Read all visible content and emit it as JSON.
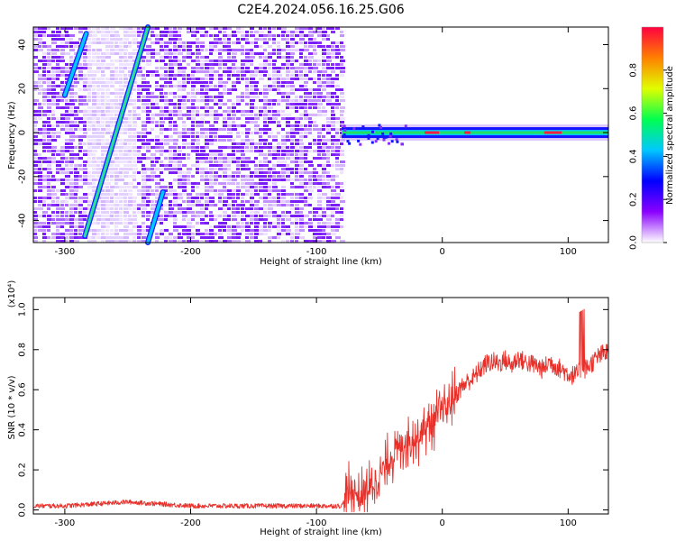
{
  "figure": {
    "title": "C2E4.2024.056.16.25.G06"
  },
  "chart_data": [
    {
      "type": "heatmap",
      "xlabel": "Height of straight line (km)",
      "ylabel": "Frequency (Hz)",
      "xlim": [
        -325,
        132
      ],
      "ylim": [
        -50,
        48
      ],
      "xticks": [
        -300,
        -200,
        -100,
        0,
        100
      ],
      "yticks": [
        -40,
        -20,
        0,
        20,
        40
      ],
      "noise_region_x": [
        -325,
        -80
      ],
      "signal_track": {
        "x": [
          -80,
          132
        ],
        "frequency": 0
      },
      "streaks": [
        {
          "x": [
            -284,
            -234
          ],
          "frequency": [
            -47,
            48
          ]
        },
        {
          "x": [
            -300,
            -283
          ],
          "frequency": [
            17,
            45
          ]
        },
        {
          "x": [
            -234,
            -222
          ],
          "frequency": [
            -50,
            -27
          ]
        }
      ],
      "colorbar": {
        "label": "Normalized spectral amplitude",
        "range": [
          0,
          1
        ],
        "ticks": [
          "0.0",
          "0.2",
          "0.4",
          "0.6",
          "0.8"
        ],
        "colors": [
          "#ffffff",
          "#8a00ff",
          "#0000ff",
          "#00c8ff",
          "#00ff50",
          "#e0ff00",
          "#ff8000",
          "#ff0040"
        ]
      }
    },
    {
      "type": "line",
      "xlabel": "Height of straight line (km)",
      "ylabel": "SNR (10 * v/v)",
      "multiplier": "(x10⁴)",
      "xlim": [
        -325,
        132
      ],
      "ylim": [
        -0.02,
        1.06
      ],
      "xticks": [
        -300,
        -200,
        -100,
        0,
        100
      ],
      "yticks": [
        0.0,
        0.2,
        0.4,
        0.6,
        0.8,
        1.0
      ],
      "color": "#e8302a",
      "series": [
        {
          "x": [
            -325,
            -300,
            -275,
            -250,
            -225,
            -200,
            -175,
            -150,
            -125,
            -100,
            -80,
            -75,
            -70,
            -65,
            -60,
            -55,
            -50,
            -45,
            -40,
            -35,
            -30,
            -25,
            -20,
            -15,
            -10,
            -5,
            0,
            5,
            10,
            15,
            20,
            25,
            30,
            35,
            40,
            45,
            50,
            55,
            60,
            65,
            70,
            75,
            80,
            85,
            90,
            95,
            100,
            105,
            110,
            115,
            120,
            125,
            132
          ],
          "values": [
            0.02,
            0.02,
            0.03,
            0.04,
            0.03,
            0.02,
            0.02,
            0.02,
            0.02,
            0.02,
            0.02,
            0.08,
            0.1,
            0.06,
            0.09,
            0.13,
            0.17,
            0.22,
            0.27,
            0.3,
            0.34,
            0.36,
            0.36,
            0.4,
            0.43,
            0.45,
            0.48,
            0.52,
            0.57,
            0.61,
            0.64,
            0.66,
            0.7,
            0.73,
            0.74,
            0.73,
            0.75,
            0.72,
            0.76,
            0.74,
            0.73,
            0.72,
            0.7,
            0.74,
            0.72,
            0.7,
            0.68,
            0.67,
            0.69,
            0.71,
            0.74,
            0.77,
            0.79
          ]
        }
      ]
    }
  ]
}
